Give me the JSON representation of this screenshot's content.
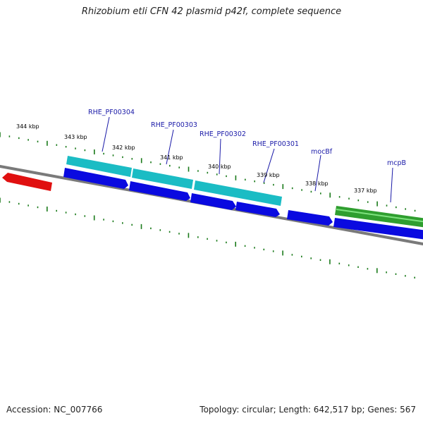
{
  "title": "Rhizobium etli CFN 42 plasmid p42f, complete sequence",
  "footer": {
    "accession": "Accession: NC_007766",
    "summary": "Topology: circular; Length: 642,517 bp; Genes: 567"
  },
  "map": {
    "backbone_color": "#808080",
    "tick_color": "#1a7a1a",
    "scale_labels": [
      "344 kbp",
      "343 kbp",
      "342 kbp",
      "341 kbp",
      "340 kbp",
      "339 kbp",
      "338 kbp",
      "337 kbp"
    ],
    "gene_labels": [
      "RHE_PF00304",
      "RHE_PF00303",
      "RHE_PF00302",
      "RHE_PF00301",
      "mocBf",
      "mcpB"
    ],
    "feature_colors": {
      "cds": "#0a0ae0",
      "gene_cyan": "#1bbcc4",
      "gene_green": "#2f9e2f",
      "reverse_red": "#e01010"
    }
  }
}
